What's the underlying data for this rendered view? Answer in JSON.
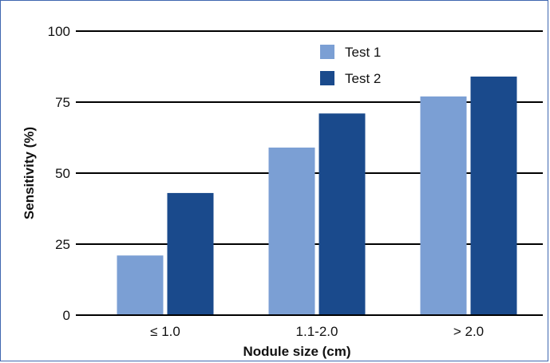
{
  "chart_data": {
    "type": "bar",
    "categories": [
      "≤ 1.0",
      "1.1-2.0",
      "> 2.0"
    ],
    "series": [
      {
        "name": "Test 1",
        "values": [
          21,
          59,
          77
        ],
        "color": "#7b9fd4"
      },
      {
        "name": "Test 2",
        "values": [
          43,
          71,
          84
        ],
        "color": "#1a4a8c"
      }
    ],
    "title": "",
    "xlabel": "Nodule size (cm)",
    "ylabel": "Sensitivity (%)",
    "ylim": [
      0,
      100
    ],
    "yticks": [
      "0",
      "25",
      "50",
      "75",
      "100"
    ],
    "grid": true,
    "legend_position": "top-right"
  }
}
